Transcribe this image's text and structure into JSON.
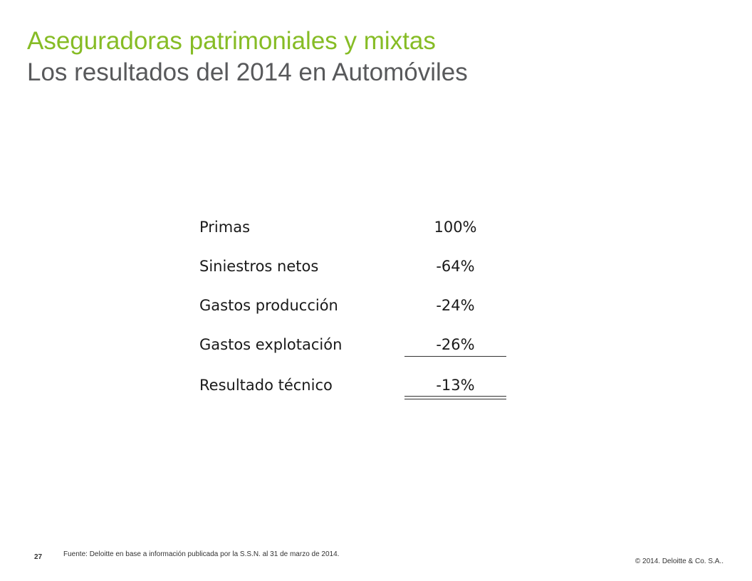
{
  "header": {
    "title_line1": "Aseguradoras patrimoniales y mixtas",
    "title_line2": "Los resultados del 2014 en Automóviles"
  },
  "results": {
    "rows": [
      {
        "label": "Primas",
        "value": "100%"
      },
      {
        "label": "Siniestros netos",
        "value": "-64%"
      },
      {
        "label": "Gastos producción",
        "value": "-24%"
      },
      {
        "label": "Gastos explotación",
        "value": "-26%"
      }
    ],
    "total": {
      "label": "Resultado técnico",
      "value": "-13%"
    }
  },
  "footer": {
    "page_number": "27",
    "source_note": "Fuente: Deloitte en base a información publicada por la S.S.N. al 31 de marzo de 2014.",
    "copyright": "© 2014. Deloitte & Co. S.A.."
  },
  "colors": {
    "title_accent": "#86bc25",
    "title_secondary": "#58595b",
    "body_text": "#1a1a1a"
  }
}
